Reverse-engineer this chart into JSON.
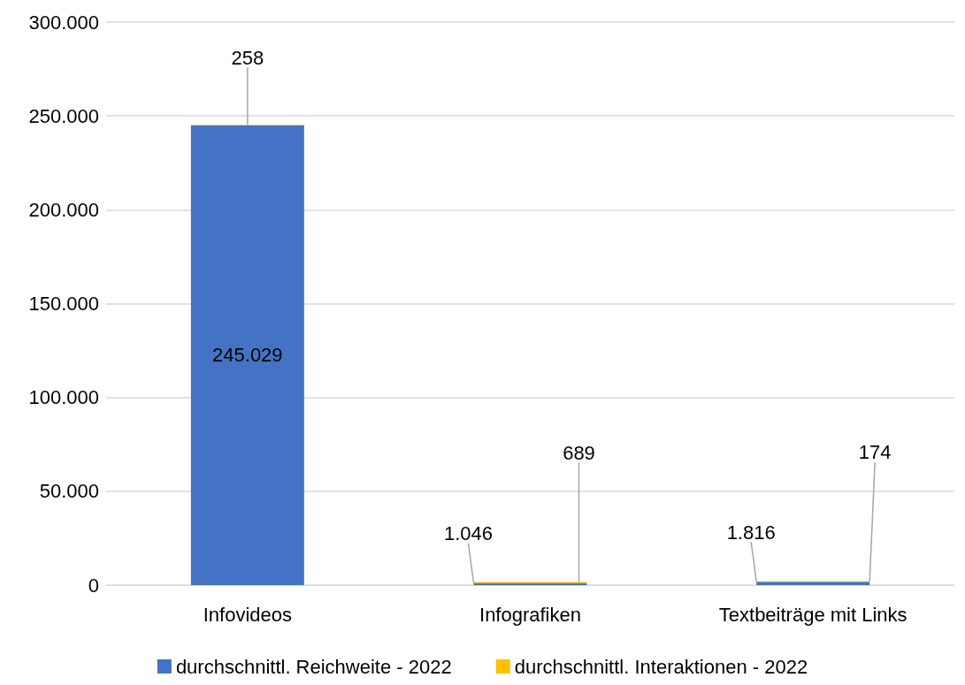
{
  "chart_data": {
    "type": "bar",
    "stacked": true,
    "categories": [
      "Infovideos",
      "Infografiken",
      "Textbeiträge mit Links"
    ],
    "series": [
      {
        "name": "durchschnittl. Reichweite - 2022",
        "color": "#4472c4",
        "values": [
          245029,
          1046,
          1816
        ],
        "value_labels": [
          "245.029",
          "1.046",
          "1.816"
        ]
      },
      {
        "name": "durchschnittl. Interaktionen - 2022",
        "color": "#ffc000",
        "values": [
          258,
          689,
          174
        ],
        "value_labels": [
          "258",
          "689",
          "174"
        ]
      }
    ],
    "ylim": [
      0,
      300000
    ],
    "yticks": [
      {
        "value": 0,
        "label": "0"
      },
      {
        "value": 50000,
        "label": "50.000"
      },
      {
        "value": 100000,
        "label": "100.000"
      },
      {
        "value": 150000,
        "label": "150.000"
      },
      {
        "value": 200000,
        "label": "200.000"
      },
      {
        "value": 250000,
        "label": "250.000"
      },
      {
        "value": 300000,
        "label": "300.000"
      }
    ],
    "grid": "y",
    "legend": "bottom"
  }
}
